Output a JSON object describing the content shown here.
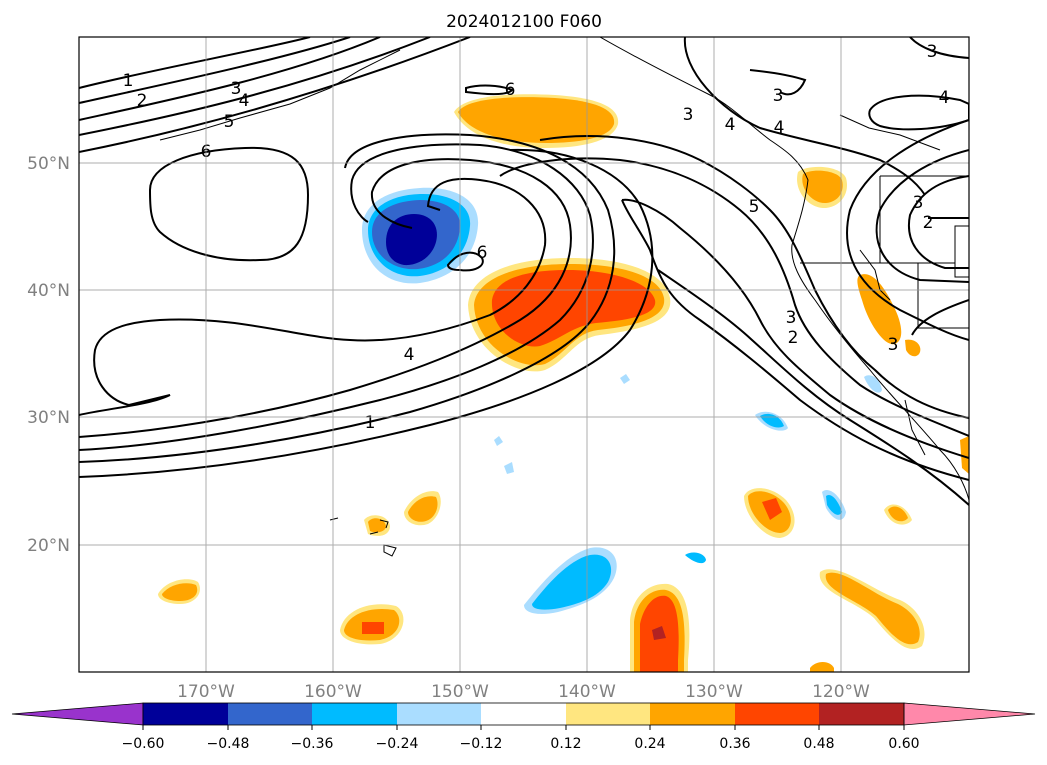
{
  "title": "2024012100 F060",
  "map": {
    "lat_labels": [
      "50°N",
      "40°N",
      "30°N",
      "20°N"
    ],
    "lon_labels": [
      "170°W",
      "160°W",
      "150°W",
      "140°W",
      "130°W",
      "120°W"
    ],
    "label_color": "#808080",
    "grid_color": "#999999"
  },
  "contours": {
    "labels": [
      "1",
      "2",
      "3",
      "4",
      "5",
      "6",
      "6",
      "6",
      "3",
      "4",
      "3",
      "4",
      "5",
      "3",
      "2",
      "3",
      "2",
      "4",
      "1",
      "3",
      "3",
      "4"
    ]
  },
  "colorbar": {
    "ticks": [
      "−0.60",
      "−0.48",
      "−0.36",
      "−0.24",
      "−0.12",
      "0.12",
      "0.24",
      "0.36",
      "0.48",
      "0.60"
    ],
    "colors": {
      "under": "#9933cc",
      "b1": "#000099",
      "b2": "#3366cc",
      "b3": "#00bbff",
      "b4": "#aaddff",
      "b5": "#ffffff",
      "b6": "#ffe680",
      "b7": "#ffa500",
      "b8": "#ff4500",
      "b9": "#b22222",
      "over": "#ff88aa"
    }
  }
}
